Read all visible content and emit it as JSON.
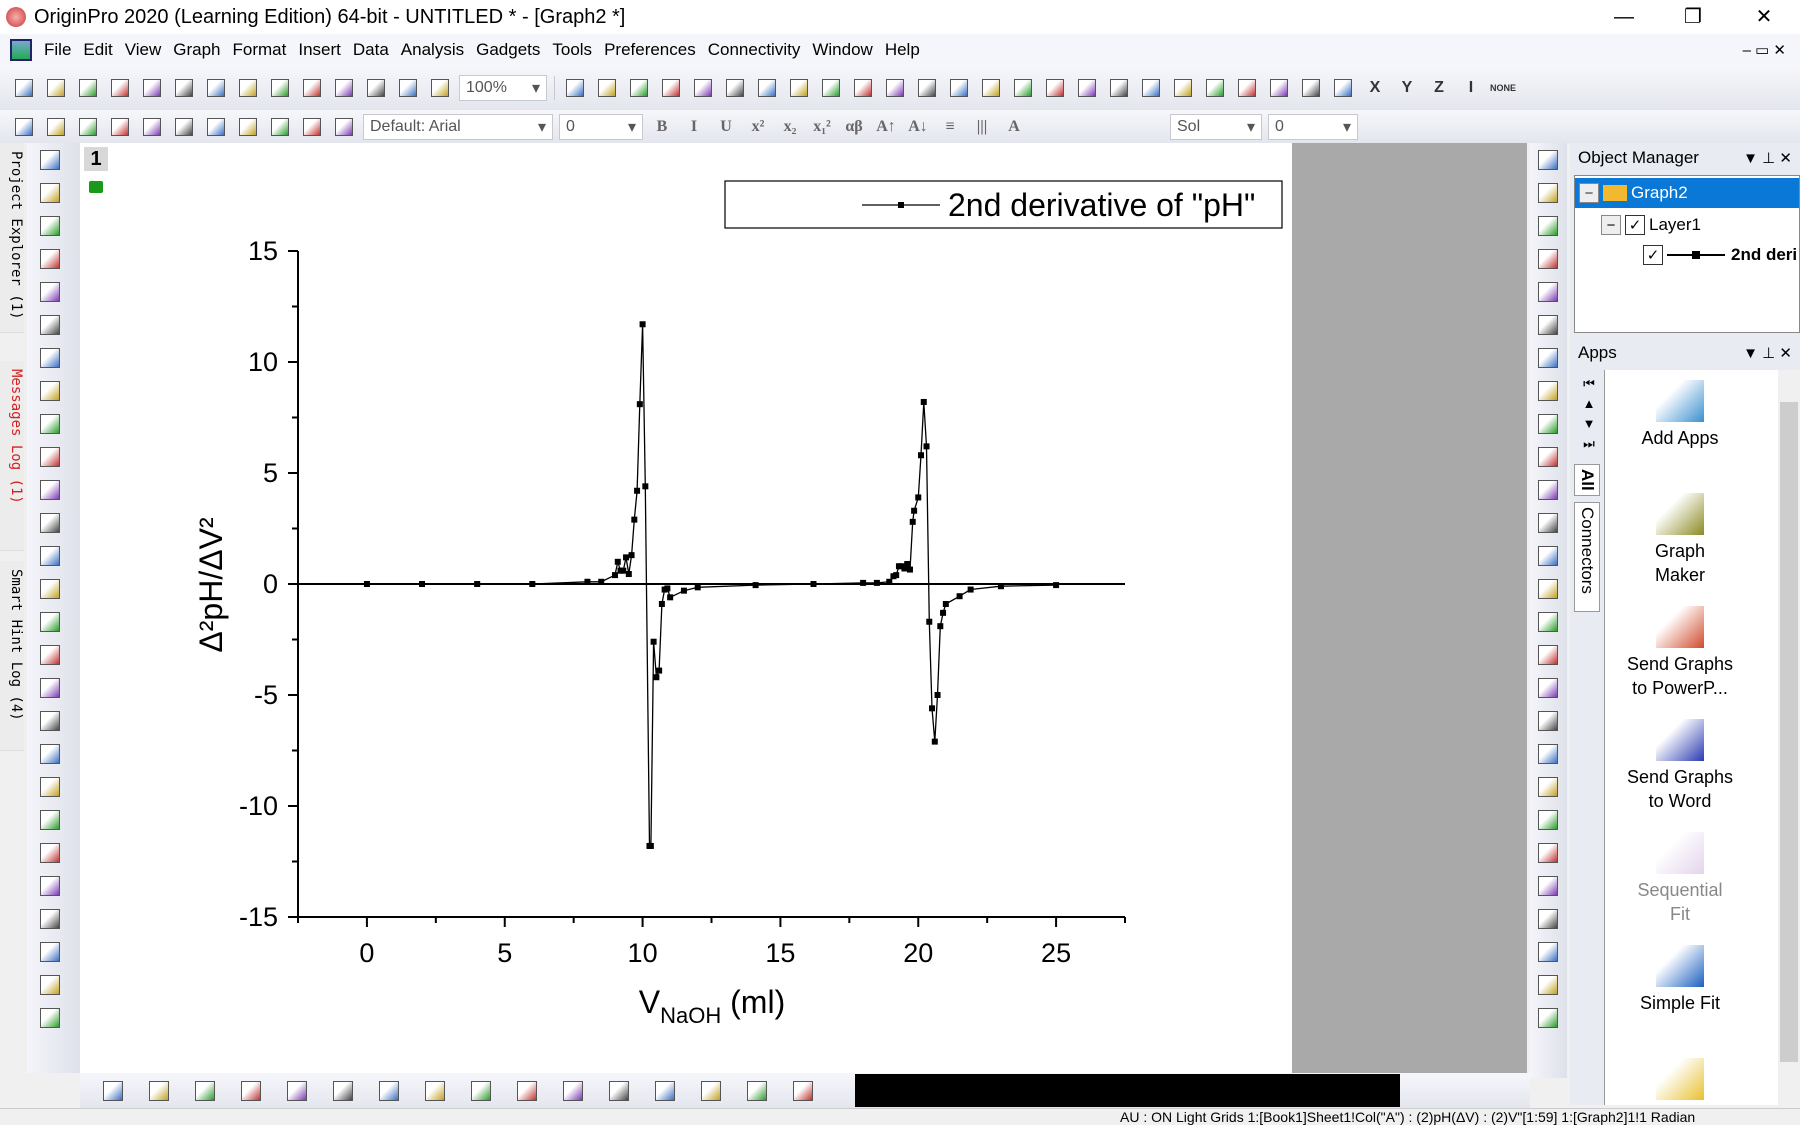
{
  "window": {
    "title": "OriginPro 2020 (Learning Edition) 64-bit - UNTITLED * - [Graph2 *]",
    "minimize": "—",
    "maximize": "❐",
    "close": "✕"
  },
  "menu": [
    "File",
    "Edit",
    "View",
    "Graph",
    "Format",
    "Insert",
    "Data",
    "Analysis",
    "Gadgets",
    "Tools",
    "Preferences",
    "Connectivity",
    "Window",
    "Help"
  ],
  "toolbar1": {
    "icons_a": [
      "new-project-icon",
      "new-folder-icon",
      "new-workbook-icon",
      "new-graph-icon",
      "new-matrix-icon",
      "new-function-icon",
      "new-layout-icon",
      "new-notes-icon",
      "new-excel-icon",
      "open-icon",
      "open-template-icon",
      "save-icon",
      "save-template-icon",
      "run-icon"
    ],
    "zoom_value": "100%",
    "icons_b": [
      "print-icon",
      "slideshow-icon",
      "export-icon",
      "video-icon",
      "code-builder-icon",
      "results-log-icon",
      "command-window-icon",
      "project-tree-icon",
      "zoom-in-icon",
      "zoom-data-icon",
      "calendar-icon",
      "notes-icon",
      "settings-icon",
      "add-column-icon",
      "sum-columns-icon",
      "statistics-icon",
      "sort-icon",
      "set-values-icon",
      "bar-chart-icon",
      "column-chart-icon",
      "box-chart-icon",
      "filter-icon",
      "clear-filter-icon",
      "reapply-filter-icon",
      "add-plot-icon"
    ],
    "xyz": [
      "X",
      "Y",
      "Z",
      "I",
      "NONE"
    ]
  },
  "toolbar2": {
    "icons_a": [
      "add-new-column-icon",
      "set-column-values-icon",
      "fill-column-icon",
      "set-xy-icon",
      "move-left-icon",
      "move-right-icon",
      "insert-column-icon",
      "duplicate-icon",
      "cut-icon",
      "copy-icon",
      "paste-icon"
    ],
    "font": "Default: Arial",
    "font_size": "0",
    "format_buttons": [
      "B",
      "I",
      "U",
      "x²",
      "x₂",
      "x₁²",
      "αβ",
      "A↑",
      "A↓",
      "≡",
      "|||",
      "A"
    ],
    "line_style": "Sol",
    "line_width": "0"
  },
  "left_tabs": [
    {
      "label": "Project Explorer (1)",
      "color": "#000000"
    },
    {
      "label": "Messages Log (1)",
      "color": "#d42020"
    },
    {
      "label": "Smart Hint Log (4)",
      "color": "#000000"
    }
  ],
  "left_tools": [
    "pointer-icon",
    "zoom-in-icon",
    "zoom-out-icon",
    "screen-reader-icon",
    "data-reader-icon",
    "data-cursor-icon",
    "data-selector-icon",
    "regional-selector-icon",
    "mask-icon",
    "text-tool-icon",
    "add-table-icon",
    "arrow-tool-icon",
    "line-tool-icon",
    "rectangle-tool-icon",
    "hand-icon",
    "equation-icon",
    "insert-graph-icon",
    "region-hand-icon",
    "rescale-icon",
    "color-scale-icon",
    "circle-tool-icon",
    "legend-icon",
    "error-bar-icon",
    "info-table-icon",
    "timestamp-icon",
    "folder-icon",
    "table-icon"
  ],
  "graph": {
    "layer_number": "1",
    "legend_label": "2nd derivative of \"pH\""
  },
  "chart_data": {
    "type": "line",
    "title": "",
    "xlabel_main": "V",
    "xlabel_sub": "NaOH",
    "xlabel_unit": " (ml)",
    "ylabel": "Δ²pH/ΔV²",
    "xlim": [
      -2.5,
      27.5
    ],
    "ylim": [
      -15,
      15
    ],
    "xticks": [
      0,
      5,
      10,
      15,
      20,
      25
    ],
    "yticks": [
      -15,
      -10,
      -5,
      0,
      5,
      10,
      15
    ],
    "zero_line": true,
    "grid": false,
    "legend_position": "top-right",
    "series": [
      {
        "name": "2nd derivative of \"pH\"",
        "color": "#000000",
        "marker": "square",
        "x": [
          0,
          2,
          4,
          6,
          8,
          8.5,
          9,
          9.1,
          9.2,
          9.3,
          9.4,
          9.5,
          9.6,
          9.7,
          9.8,
          9.9,
          10,
          10.1,
          10.25,
          10.3,
          10.4,
          10.5,
          10.6,
          10.7,
          10.8,
          10.9,
          11,
          11.5,
          12,
          14.1,
          16.2,
          18,
          18.5,
          18.95,
          19.1,
          19.2,
          19.3,
          19.4,
          19.5,
          19.6,
          19.7,
          19.8,
          19.85,
          20,
          20.1,
          20.2,
          20.3,
          20.4,
          20.5,
          20.6,
          20.7,
          20.8,
          20.9,
          21,
          21.5,
          21.9,
          23,
          25
        ],
        "y": [
          0,
          0,
          0,
          0,
          0.1,
          0.1,
          0.4,
          1.0,
          0.6,
          0.6,
          1.2,
          0.45,
          1.3,
          2.9,
          4.2,
          8.1,
          11.7,
          4.4,
          -11.8,
          -11.8,
          -2.6,
          -4.2,
          -3.9,
          -0.9,
          -0.25,
          -0.2,
          -0.6,
          -0.3,
          -0.15,
          -0.05,
          0,
          0.05,
          0.05,
          0.1,
          0.35,
          0.4,
          0.8,
          0.8,
          0.7,
          0.9,
          0.65,
          2.8,
          3.3,
          3.9,
          5.8,
          8.2,
          6.2,
          -1.7,
          -5.6,
          -7.1,
          -5.0,
          -1.9,
          -1.3,
          -0.9,
          -0.55,
          -0.25,
          -0.1,
          -0.05
        ]
      }
    ]
  },
  "right_tools": [
    "layer-icon",
    "enlarge-icon",
    "axis-icon",
    "axis-reset-icon",
    "refresh-icon",
    "speed-mode-icon",
    "layout-1-icon",
    "layout-2-icon",
    "layout-3-icon",
    "layout-4-icon",
    "axis-l-icon",
    "axis-b-icon",
    "axis-r-icon",
    "frame-icon",
    "axis-scale-icon",
    "axis-break-icon",
    "align-left-icon",
    "align-right-icon",
    "align-top-icon",
    "align-bottom-icon",
    "distribute-h-icon",
    "distribute-v-icon",
    "same-width-icon",
    "same-height-icon",
    "group-icon",
    "front-icon",
    "back-icon"
  ],
  "object_manager": {
    "title": "Object Manager",
    "graph": "Graph2",
    "layer": "Layer1",
    "plot": "2nd deri"
  },
  "apps": {
    "title": "Apps",
    "tabs": [
      "All",
      "Connectors"
    ],
    "items": [
      {
        "label1": "Add Apps",
        "label2": "",
        "color": "#3a8fd0",
        "faded": false
      },
      {
        "label1": "Graph",
        "label2": "Maker",
        "color": "#8a8a20",
        "faded": false
      },
      {
        "label1": "Send Graphs",
        "label2": "to PowerP...",
        "color": "#d04a2a",
        "faded": false
      },
      {
        "label1": "Send Graphs",
        "label2": "to Word",
        "color": "#2a3ab0",
        "faded": false
      },
      {
        "label1": "Sequential",
        "label2": "Fit",
        "color": "#c8a8d8",
        "faded": true
      },
      {
        "label1": "Simple Fit",
        "label2": "",
        "color": "#1a5fc0",
        "faded": false
      },
      {
        "label1": "",
        "label2": "",
        "color": "#e8c030",
        "faded": false
      }
    ]
  },
  "bottom_tools": [
    "line-plot-icon",
    "scatter-plot-icon",
    "line-symbol-icon",
    "column-plot-icon",
    "stat-plot-icon",
    "box-plot-icon",
    "area-plot-icon",
    "pie-plot-icon",
    "stock-plot-icon",
    "template-icon",
    "3d-icon",
    "surface-icon",
    "contour-icon",
    "heatmap-icon",
    "ternary-icon",
    "polar-icon"
  ],
  "status": "AU : ON  Light Grids  1:[Book1]Sheet1!Col(\"A\") : (2)pH(ΔV) : (2)V\"[1:59]  1:[Graph2]1!1  Radian"
}
